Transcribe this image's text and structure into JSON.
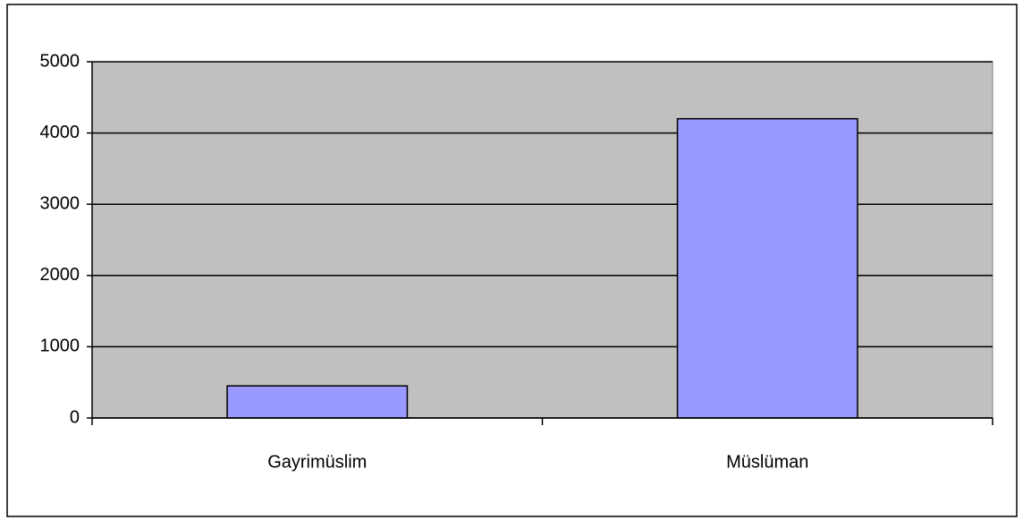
{
  "chart_data": {
    "type": "bar",
    "categories": [
      "Gayrimüslim",
      "Müslüman"
    ],
    "values": [
      450,
      4200
    ],
    "color": "#9999ff",
    "ylim": [
      0,
      5000
    ],
    "yticks": [
      0,
      1000,
      2000,
      3000,
      4000,
      5000
    ],
    "grid": true
  }
}
